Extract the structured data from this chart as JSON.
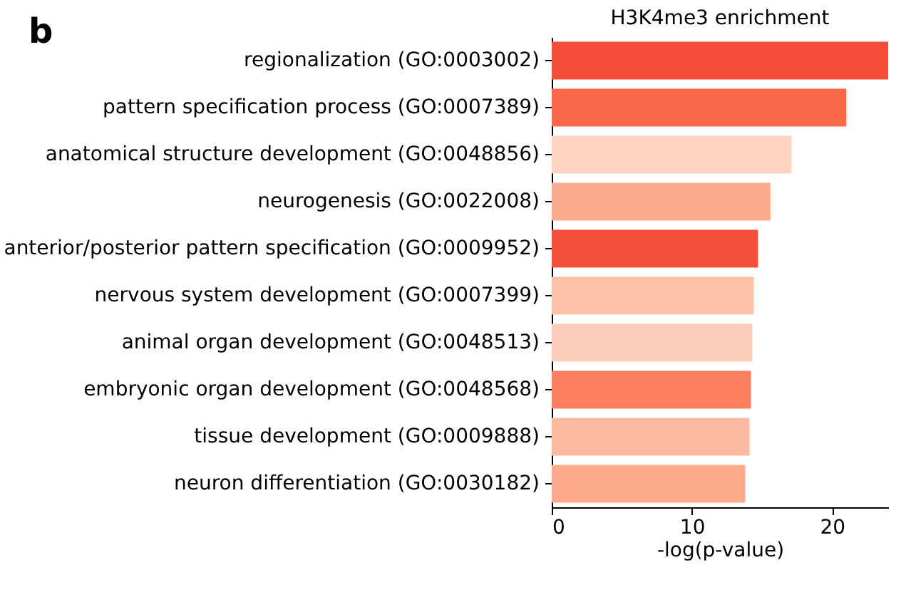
{
  "chart_data": {
    "type": "bar",
    "orientation": "horizontal",
    "title": "H3K4me3 enrichment",
    "xlabel": "-log(p-value)",
    "annotations": [
      "b"
    ],
    "categories": [
      "regionalization (GO:0003002)",
      "pattern specification process (GO:0007389)",
      "anatomical structure development (GO:0048856)",
      "neurogenesis (GO:0022008)",
      "anterior/posterior pattern specification (GO:0009952)",
      "nervous system development (GO:0007399)",
      "animal organ development (GO:0048513)",
      "embryonic organ development (GO:0048568)",
      "tissue development (GO:0009888)",
      "neuron differentiation (GO:0030182)"
    ],
    "values": [
      24.0,
      21.0,
      17.1,
      15.6,
      14.7,
      14.4,
      14.3,
      14.2,
      14.1,
      13.8
    ],
    "colors": [
      "#f44d38",
      "#fb694a",
      "#fdd4c2",
      "#fcab8f",
      "#f44f39",
      "#fbc0a7",
      "#fccdb9",
      "#fc7f5f",
      "#fbb9a0",
      "#fca98c"
    ],
    "xlim": [
      0,
      24
    ],
    "xticks": [
      0,
      10,
      20
    ],
    "grid": false
  }
}
